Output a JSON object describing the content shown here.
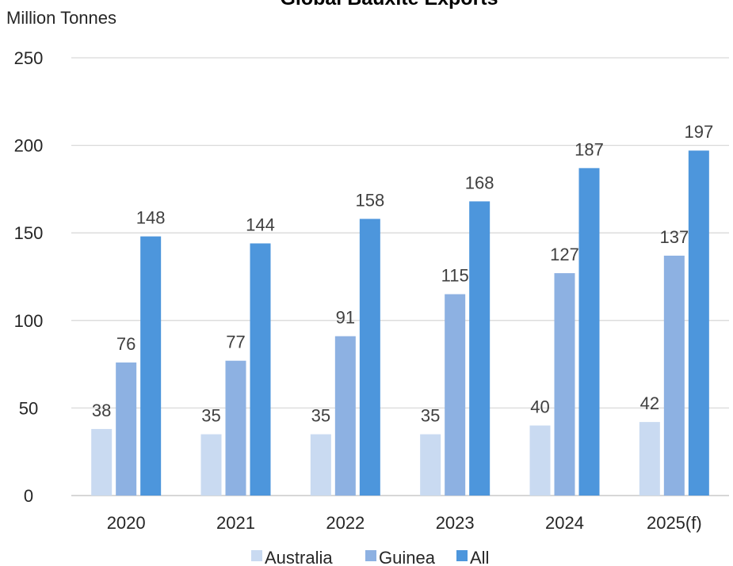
{
  "chart_data": {
    "type": "bar",
    "title": "Global Bauxite Exports",
    "ylabel": "Million Tonnes",
    "xlabel": "",
    "categories": [
      "2020",
      "2021",
      "2022",
      "2023",
      "2024",
      "2025(f)"
    ],
    "series": [
      {
        "name": "Australia",
        "values": [
          38,
          35,
          35,
          35,
          40,
          42
        ],
        "color": "#c9daf1"
      },
      {
        "name": "Guinea",
        "values": [
          76,
          77,
          91,
          115,
          127,
          137
        ],
        "color": "#8db1e2"
      },
      {
        "name": "All",
        "values": [
          148,
          144,
          158,
          168,
          187,
          197
        ],
        "color": "#4d96dc"
      }
    ],
    "ylim": [
      0,
      250
    ],
    "yticks": [
      0,
      50,
      100,
      150,
      200,
      250
    ],
    "grid": true,
    "legend_position": "bottom"
  }
}
